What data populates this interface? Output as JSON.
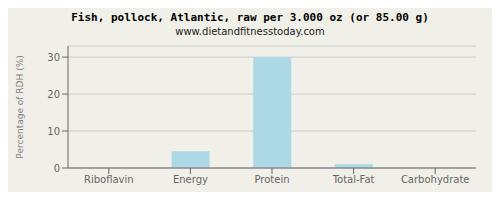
{
  "chart_data": {
    "type": "bar",
    "title": "Fish, pollock, Atlantic, raw per 3.000 oz (or 85.00 g)",
    "subtitle": "www.dietandfitnesstoday.com",
    "categories": [
      "Riboflavin",
      "Energy",
      "Protein",
      "Total-Fat",
      "Carbohydrate"
    ],
    "values": [
      0,
      4.5,
      30,
      1,
      0
    ],
    "color": "#add8e6",
    "ylabel": "Percentage of RDH (%)",
    "ylim": [
      0,
      33
    ],
    "yticks": [
      0,
      10,
      20,
      30
    ],
    "grid": true
  }
}
